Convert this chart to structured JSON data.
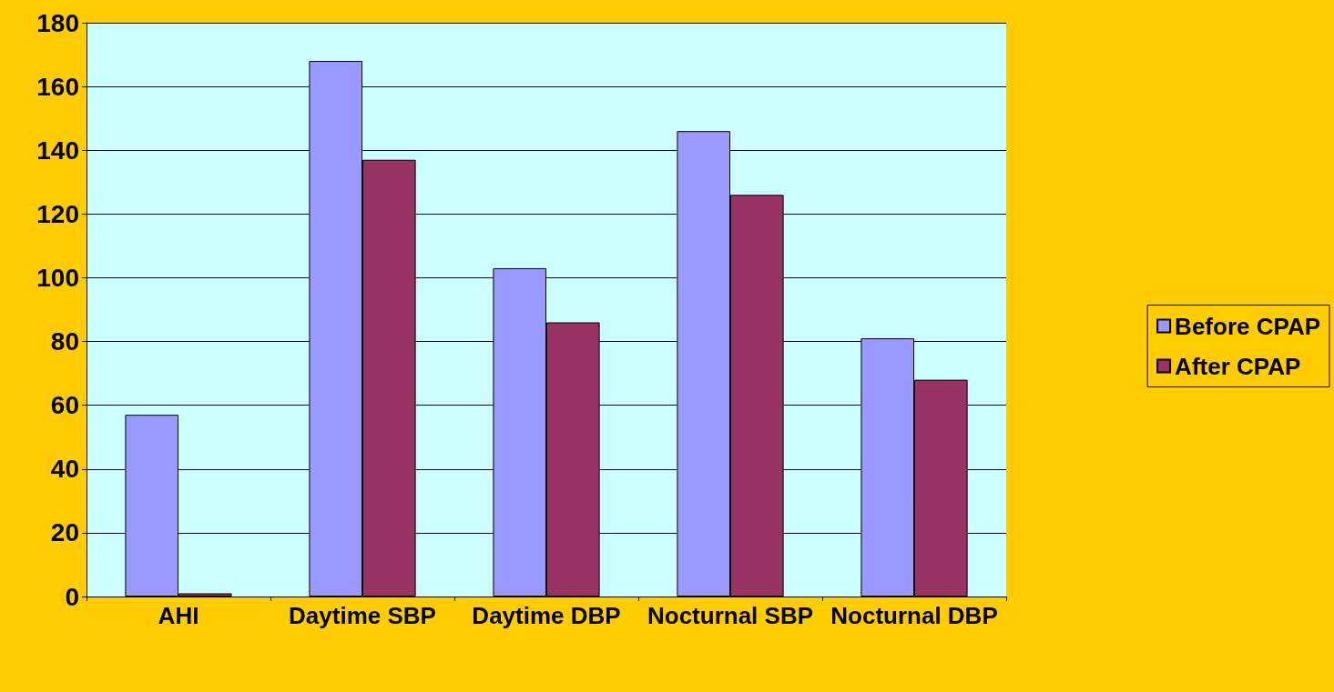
{
  "chart_data": {
    "type": "bar",
    "categories": [
      "AHI",
      "Daytime SBP",
      "Daytime DBP",
      "Nocturnal SBP",
      "Nocturnal DBP"
    ],
    "series": [
      {
        "name": "Before CPAP",
        "color": "#9999ff",
        "values": [
          57,
          168,
          103,
          146,
          81
        ]
      },
      {
        "name": "After CPAP",
        "color": "#993366",
        "values": [
          1,
          137,
          86,
          126,
          68
        ]
      }
    ],
    "ylim": [
      0,
      180
    ],
    "yticks": [
      0,
      20,
      40,
      60,
      80,
      100,
      120,
      140,
      160,
      180
    ],
    "grid": "y",
    "legend": "right"
  }
}
